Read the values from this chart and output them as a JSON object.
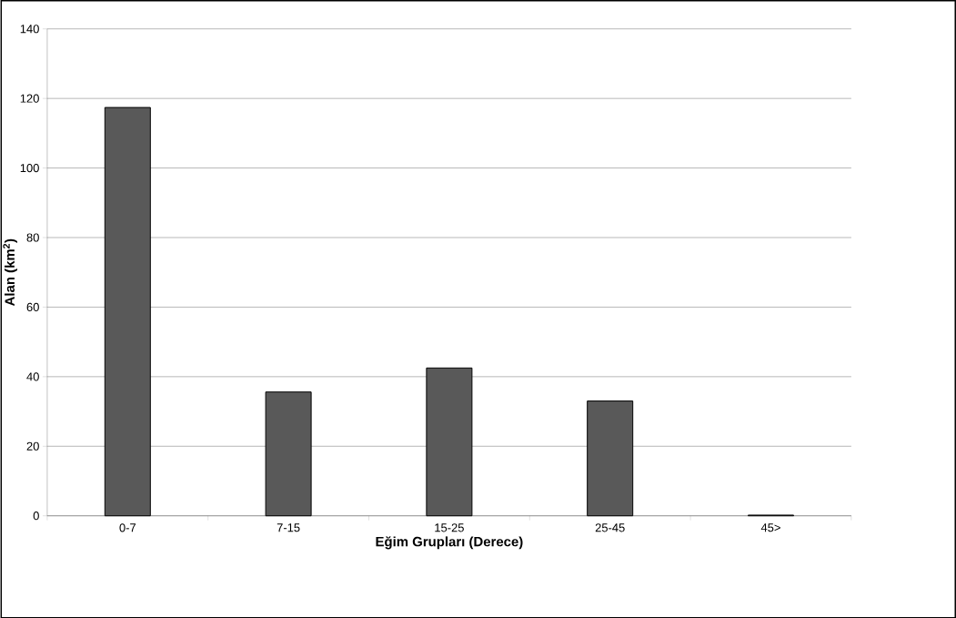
{
  "chart_data": {
    "type": "bar",
    "xlabel": "Eğim Grupları (Derece)",
    "ylabel": "Alan (km$^{2}$)",
    "categories": [
      "0-7",
      "7-15",
      "15-25",
      "25-45",
      "45>"
    ],
    "values": [
      117.4,
      35.6,
      42.5,
      33.0,
      0.2
    ],
    "color": "#595959",
    "ylim": [
      0,
      140
    ],
    "yticks": [
      0,
      20,
      40,
      60,
      80,
      100,
      120,
      140
    ],
    "grid": "y"
  }
}
